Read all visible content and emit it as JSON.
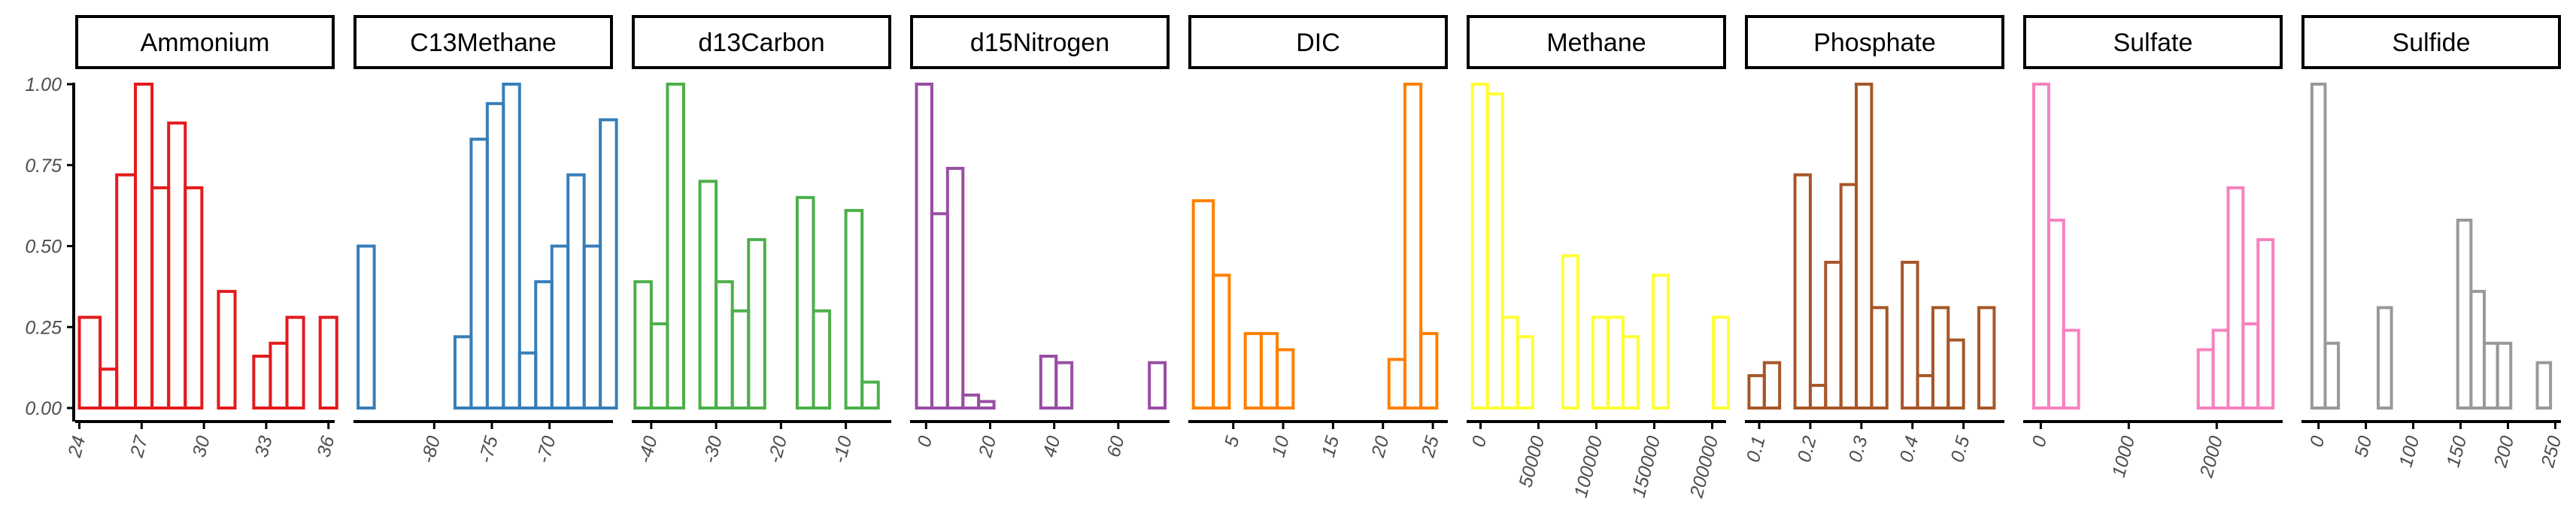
{
  "chart_data": {
    "type": "bar",
    "grid": false,
    "y_ticks": [
      "0.00",
      "0.25",
      "0.50",
      "0.75",
      "1.00"
    ],
    "ylim": [
      -0.03,
      1.0
    ],
    "panels": [
      {
        "name": "Ammonium",
        "color": "#e41a1c",
        "xlim": [
          23.8,
          36.3
        ],
        "x_ticks": [
          24,
          27,
          30,
          33,
          36
        ],
        "x_tick_labels": [
          "24",
          "27",
          "30",
          "33",
          "36"
        ],
        "bins": [
          {
            "x0": 24.0,
            "x1": 25.0,
            "value": 0.28
          },
          {
            "x0": 25.0,
            "x1": 25.8,
            "value": 0.12
          },
          {
            "x0": 25.8,
            "x1": 26.7,
            "value": 0.72
          },
          {
            "x0": 26.7,
            "x1": 27.5,
            "value": 1.0
          },
          {
            "x0": 27.5,
            "x1": 28.3,
            "value": 0.68
          },
          {
            "x0": 28.3,
            "x1": 29.1,
            "value": 0.88
          },
          {
            "x0": 29.1,
            "x1": 29.9,
            "value": 0.68
          },
          {
            "x0": 29.9,
            "x1": 30.7,
            "value": 0.0
          },
          {
            "x0": 30.7,
            "x1": 31.5,
            "value": 0.36
          },
          {
            "x0": 31.5,
            "x1": 32.4,
            "value": 0.0
          },
          {
            "x0": 32.4,
            "x1": 33.2,
            "value": 0.16
          },
          {
            "x0": 33.2,
            "x1": 34.0,
            "value": 0.2
          },
          {
            "x0": 34.0,
            "x1": 34.8,
            "value": 0.28
          },
          {
            "x0": 34.8,
            "x1": 35.6,
            "value": 0.0
          },
          {
            "x0": 35.6,
            "x1": 36.4,
            "value": 0.28
          }
        ]
      },
      {
        "name": "C13Methane",
        "color": "#377eb8",
        "xlim": [
          -87.0,
          -64.5
        ],
        "x_ticks": [
          -80,
          -75,
          -70
        ],
        "x_tick_labels": [
          "-80",
          "-75",
          "-70"
        ],
        "bins": [
          {
            "x0": -86.6,
            "x1": -85.2,
            "value": 0.5
          },
          {
            "x0": -85.2,
            "x1": -83.8,
            "value": 0.0
          },
          {
            "x0": -83.8,
            "x1": -82.4,
            "value": 0.0
          },
          {
            "x0": -82.4,
            "x1": -81.0,
            "value": 0.0
          },
          {
            "x0": -81.0,
            "x1": -79.6,
            "value": 0.0
          },
          {
            "x0": -79.6,
            "x1": -78.2,
            "value": 0.0
          },
          {
            "x0": -78.2,
            "x1": -76.8,
            "value": 0.22
          },
          {
            "x0": -76.8,
            "x1": -75.4,
            "value": 0.83
          },
          {
            "x0": -75.4,
            "x1": -74.0,
            "value": 0.94
          },
          {
            "x0": -74.0,
            "x1": -72.6,
            "value": 1.0
          },
          {
            "x0": -72.6,
            "x1": -71.2,
            "value": 0.17
          },
          {
            "x0": -71.2,
            "x1": -69.8,
            "value": 0.39
          },
          {
            "x0": -69.8,
            "x1": -68.4,
            "value": 0.5
          },
          {
            "x0": -68.4,
            "x1": -67.0,
            "value": 0.72
          },
          {
            "x0": -67.0,
            "x1": -65.6,
            "value": 0.5
          },
          {
            "x0": -65.6,
            "x1": -64.2,
            "value": 0.89
          }
        ]
      },
      {
        "name": "d13Carbon",
        "color": "#4daf4a",
        "xlim": [
          -43.0,
          -3.0
        ],
        "x_ticks": [
          -40,
          -30,
          -20,
          -10
        ],
        "x_tick_labels": [
          "-40",
          "-30",
          "-20",
          "-10"
        ],
        "bins": [
          {
            "x0": -42.5,
            "x1": -40.0,
            "value": 0.39
          },
          {
            "x0": -40.0,
            "x1": -37.5,
            "value": 0.26
          },
          {
            "x0": -37.5,
            "x1": -35.0,
            "value": 1.0
          },
          {
            "x0": -35.0,
            "x1": -32.5,
            "value": 0.0
          },
          {
            "x0": -32.5,
            "x1": -30.0,
            "value": 0.7
          },
          {
            "x0": -30.0,
            "x1": -27.5,
            "value": 0.39
          },
          {
            "x0": -27.5,
            "x1": -25.0,
            "value": 0.3
          },
          {
            "x0": -25.0,
            "x1": -22.5,
            "value": 0.52
          },
          {
            "x0": -22.5,
            "x1": -20.0,
            "value": 0.0
          },
          {
            "x0": -20.0,
            "x1": -17.5,
            "value": 0.0
          },
          {
            "x0": -17.5,
            "x1": -15.0,
            "value": 0.65
          },
          {
            "x0": -15.0,
            "x1": -12.5,
            "value": 0.3
          },
          {
            "x0": -12.5,
            "x1": -10.0,
            "value": 0.0
          },
          {
            "x0": -10.0,
            "x1": -7.5,
            "value": 0.61
          },
          {
            "x0": -7.5,
            "x1": -5.0,
            "value": 0.08
          }
        ]
      },
      {
        "name": "d15Nitrogen",
        "color": "#984ea3",
        "xlim": [
          -5.0,
          76.0
        ],
        "x_ticks": [
          0,
          20,
          40,
          60
        ],
        "x_tick_labels": [
          "0",
          "20",
          "40",
          "60"
        ],
        "bins": [
          {
            "x0": -3.0,
            "x1": 1.8,
            "value": 1.0
          },
          {
            "x0": 1.8,
            "x1": 6.7,
            "value": 0.6
          },
          {
            "x0": 6.7,
            "x1": 11.5,
            "value": 0.74
          },
          {
            "x0": 11.5,
            "x1": 16.4,
            "value": 0.04
          },
          {
            "x0": 16.4,
            "x1": 21.2,
            "value": 0.02
          },
          {
            "x0": 21.2,
            "x1": 26.1,
            "value": 0.0
          },
          {
            "x0": 26.1,
            "x1": 30.9,
            "value": 0.0
          },
          {
            "x0": 30.9,
            "x1": 35.8,
            "value": 0.0
          },
          {
            "x0": 35.8,
            "x1": 40.6,
            "value": 0.16
          },
          {
            "x0": 40.6,
            "x1": 45.5,
            "value": 0.14
          },
          {
            "x0": 45.5,
            "x1": 50.3,
            "value": 0.0
          },
          {
            "x0": 50.3,
            "x1": 55.2,
            "value": 0.0
          },
          {
            "x0": 55.2,
            "x1": 60.0,
            "value": 0.0
          },
          {
            "x0": 60.0,
            "x1": 64.9,
            "value": 0.0
          },
          {
            "x0": 64.9,
            "x1": 69.7,
            "value": 0.0
          },
          {
            "x0": 69.7,
            "x1": 74.6,
            "value": 0.14
          }
        ]
      },
      {
        "name": "DIC",
        "color": "#ff7f00",
        "xlim": [
          0.5,
          26.5
        ],
        "x_ticks": [
          5,
          10,
          15,
          20,
          25
        ],
        "x_tick_labels": [
          "5",
          "10",
          "15",
          "20",
          "25"
        ],
        "bins": [
          {
            "x0": 1.0,
            "x1": 3.0,
            "value": 0.64
          },
          {
            "x0": 3.0,
            "x1": 4.6,
            "value": 0.41
          },
          {
            "x0": 4.6,
            "x1": 6.2,
            "value": 0.0
          },
          {
            "x0": 6.2,
            "x1": 7.8,
            "value": 0.23
          },
          {
            "x0": 7.8,
            "x1": 9.4,
            "value": 0.23
          },
          {
            "x0": 9.4,
            "x1": 11.0,
            "value": 0.18
          },
          {
            "x0": 11.0,
            "x1": 12.6,
            "value": 0.0
          },
          {
            "x0": 12.6,
            "x1": 14.2,
            "value": 0.0
          },
          {
            "x0": 14.2,
            "x1": 15.8,
            "value": 0.0
          },
          {
            "x0": 15.8,
            "x1": 17.4,
            "value": 0.0
          },
          {
            "x0": 17.4,
            "x1": 19.0,
            "value": 0.0
          },
          {
            "x0": 19.0,
            "x1": 20.6,
            "value": 0.0
          },
          {
            "x0": 20.6,
            "x1": 22.2,
            "value": 0.15
          },
          {
            "x0": 22.2,
            "x1": 23.8,
            "value": 1.0
          },
          {
            "x0": 23.8,
            "x1": 25.4,
            "value": 0.23
          }
        ]
      },
      {
        "name": "Methane",
        "color": "#ffff33",
        "xlim": [
          -12000,
          212000
        ],
        "x_ticks": [
          0,
          50000,
          100000,
          150000,
          200000
        ],
        "x_tick_labels": [
          "0",
          "50000",
          "100000",
          "150000",
          "200000"
        ],
        "bins": [
          {
            "x0": -7000,
            "x1": 6000,
            "value": 1.0
          },
          {
            "x0": 6000,
            "x1": 19000,
            "value": 0.97
          },
          {
            "x0": 19000,
            "x1": 32000,
            "value": 0.28
          },
          {
            "x0": 32000,
            "x1": 45000,
            "value": 0.22
          },
          {
            "x0": 45000,
            "x1": 58000,
            "value": 0.0
          },
          {
            "x0": 58000,
            "x1": 71000,
            "value": 0.0
          },
          {
            "x0": 71000,
            "x1": 84000,
            "value": 0.47
          },
          {
            "x0": 84000,
            "x1": 97000,
            "value": 0.0
          },
          {
            "x0": 97000,
            "x1": 110000,
            "value": 0.28
          },
          {
            "x0": 110000,
            "x1": 123000,
            "value": 0.28
          },
          {
            "x0": 123000,
            "x1": 136000,
            "value": 0.22
          },
          {
            "x0": 136000,
            "x1": 149000,
            "value": 0.0
          },
          {
            "x0": 149000,
            "x1": 162000,
            "value": 0.41
          },
          {
            "x0": 162000,
            "x1": 175000,
            "value": 0.0
          },
          {
            "x0": 175000,
            "x1": 188000,
            "value": 0.0
          },
          {
            "x0": 188000,
            "x1": 201000,
            "value": 0.0
          },
          {
            "x0": 201000,
            "x1": 214000,
            "value": 0.28
          }
        ]
      },
      {
        "name": "Phosphate",
        "color": "#a65628",
        "xlim": [
          0.072,
          0.58
        ],
        "x_ticks": [
          0.1,
          0.2,
          0.3,
          0.4,
          0.5
        ],
        "x_tick_labels": [
          "0.1",
          "0.2",
          "0.3",
          "0.4",
          "0.5"
        ],
        "bins": [
          {
            "x0": 0.08,
            "x1": 0.11,
            "value": 0.1
          },
          {
            "x0": 0.11,
            "x1": 0.14,
            "value": 0.14
          },
          {
            "x0": 0.14,
            "x1": 0.17,
            "value": 0.0
          },
          {
            "x0": 0.17,
            "x1": 0.2,
            "value": 0.72
          },
          {
            "x0": 0.2,
            "x1": 0.23,
            "value": 0.07
          },
          {
            "x0": 0.23,
            "x1": 0.26,
            "value": 0.45
          },
          {
            "x0": 0.26,
            "x1": 0.29,
            "value": 0.69
          },
          {
            "x0": 0.29,
            "x1": 0.32,
            "value": 1.0
          },
          {
            "x0": 0.32,
            "x1": 0.35,
            "value": 0.31
          },
          {
            "x0": 0.35,
            "x1": 0.38,
            "value": 0.0
          },
          {
            "x0": 0.38,
            "x1": 0.41,
            "value": 0.45
          },
          {
            "x0": 0.41,
            "x1": 0.44,
            "value": 0.1
          },
          {
            "x0": 0.44,
            "x1": 0.47,
            "value": 0.31
          },
          {
            "x0": 0.47,
            "x1": 0.5,
            "value": 0.21
          },
          {
            "x0": 0.5,
            "x1": 0.53,
            "value": 0.0
          },
          {
            "x0": 0.53,
            "x1": 0.56,
            "value": 0.31
          }
        ]
      },
      {
        "name": "Sulfate",
        "color": "#f781bf",
        "xlim": [
          -200,
          2750
        ],
        "x_ticks": [
          0,
          1000,
          2000
        ],
        "x_tick_labels": [
          "0",
          "1000",
          "2000"
        ],
        "bins": [
          {
            "x0": -80,
            "x1": 90,
            "value": 1.0
          },
          {
            "x0": 90,
            "x1": 260,
            "value": 0.58
          },
          {
            "x0": 260,
            "x1": 430,
            "value": 0.24
          },
          {
            "x0": 430,
            "x1": 600,
            "value": 0.0
          },
          {
            "x0": 600,
            "x1": 770,
            "value": 0.0
          },
          {
            "x0": 770,
            "x1": 940,
            "value": 0.0
          },
          {
            "x0": 940,
            "x1": 1110,
            "value": 0.0
          },
          {
            "x0": 1110,
            "x1": 1280,
            "value": 0.0
          },
          {
            "x0": 1280,
            "x1": 1450,
            "value": 0.0
          },
          {
            "x0": 1450,
            "x1": 1620,
            "value": 0.0
          },
          {
            "x0": 1620,
            "x1": 1790,
            "value": 0.0
          },
          {
            "x0": 1790,
            "x1": 1960,
            "value": 0.18
          },
          {
            "x0": 1960,
            "x1": 2130,
            "value": 0.24
          },
          {
            "x0": 2130,
            "x1": 2300,
            "value": 0.68
          },
          {
            "x0": 2300,
            "x1": 2470,
            "value": 0.26
          },
          {
            "x0": 2470,
            "x1": 2640,
            "value": 0.52
          }
        ]
      },
      {
        "name": "Sulfide",
        "color": "#999999",
        "xlim": [
          -18,
          256
        ],
        "x_ticks": [
          0,
          50,
          100,
          150,
          200,
          250
        ],
        "x_tick_labels": [
          "0",
          "50",
          "100",
          "150",
          "200",
          "250"
        ],
        "bins": [
          {
            "x0": -7,
            "x1": 7,
            "value": 1.0
          },
          {
            "x0": 7,
            "x1": 21,
            "value": 0.2
          },
          {
            "x0": 21,
            "x1": 35,
            "value": 0.0
          },
          {
            "x0": 35,
            "x1": 49,
            "value": 0.0
          },
          {
            "x0": 49,
            "x1": 63,
            "value": 0.0
          },
          {
            "x0": 63,
            "x1": 77,
            "value": 0.31
          },
          {
            "x0": 77,
            "x1": 91,
            "value": 0.0
          },
          {
            "x0": 91,
            "x1": 105,
            "value": 0.0
          },
          {
            "x0": 105,
            "x1": 119,
            "value": 0.0
          },
          {
            "x0": 119,
            "x1": 133,
            "value": 0.0
          },
          {
            "x0": 133,
            "x1": 147,
            "value": 0.0
          },
          {
            "x0": 147,
            "x1": 161,
            "value": 0.58
          },
          {
            "x0": 161,
            "x1": 175,
            "value": 0.36
          },
          {
            "x0": 175,
            "x1": 189,
            "value": 0.2
          },
          {
            "x0": 189,
            "x1": 203,
            "value": 0.2
          },
          {
            "x0": 203,
            "x1": 217,
            "value": 0.0
          },
          {
            "x0": 217,
            "x1": 231,
            "value": 0.0
          },
          {
            "x0": 231,
            "x1": 245,
            "value": 0.14
          }
        ]
      }
    ]
  }
}
